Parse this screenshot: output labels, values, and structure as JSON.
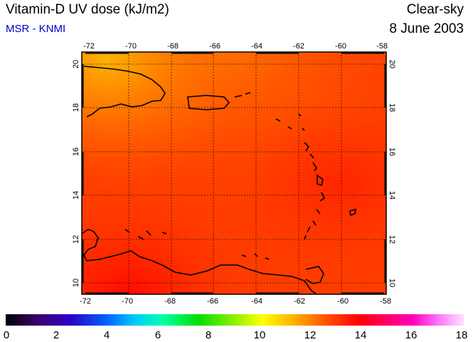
{
  "header": {
    "title": "Vitamin-D UV dose (kJ/m2)",
    "subtitle": "MSR - KNMI",
    "mode": "Clear-sky",
    "date": "8 June 2003"
  },
  "map": {
    "lon_ticks": [
      "-72",
      "-70",
      "-68",
      "-66",
      "-64",
      "-62",
      "-60",
      "-58"
    ],
    "lat_ticks": [
      "10",
      "12",
      "14",
      "16",
      "18",
      "20"
    ],
    "lon_range": [
      -72,
      -58
    ],
    "lat_range": [
      9.5,
      20.5
    ],
    "grid": true,
    "dominant_color": "#ff3a00"
  },
  "colorbar": {
    "labels": [
      "0",
      "2",
      "4",
      "6",
      "8",
      "10",
      "12",
      "14",
      "16",
      "18"
    ],
    "range": [
      0,
      18
    ]
  }
}
